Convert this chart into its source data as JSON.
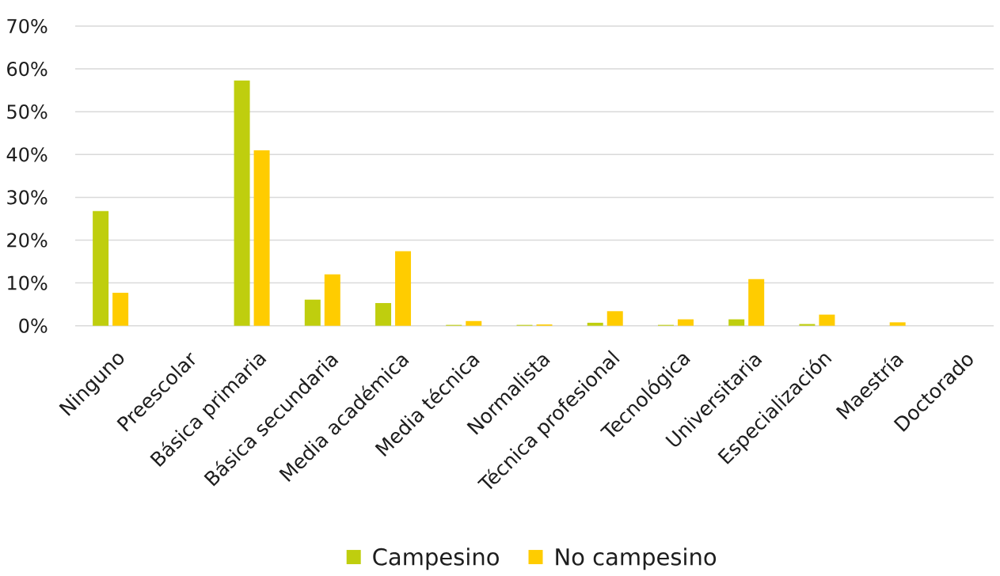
{
  "chart_data": {
    "type": "bar",
    "categories": [
      "Ninguno",
      "Preescolar",
      "Básica primaria",
      "Básica secundaria",
      "Media académica",
      "Media técnica",
      "Normalista",
      "Técnica profesional",
      "Tecnológica",
      "Universitaria",
      "Especialización",
      "Maestría",
      "Doctorado"
    ],
    "series": [
      {
        "name": "Campesino",
        "color": "#bfce0e",
        "values": [
          26.8,
          null,
          57.3,
          6.1,
          5.3,
          0.2,
          0.2,
          0.7,
          0.2,
          1.5,
          0.4,
          null,
          null
        ]
      },
      {
        "name": "No campesino",
        "color": "#ffcc00",
        "values": [
          7.7,
          null,
          41.0,
          12.0,
          17.4,
          1.1,
          0.3,
          3.4,
          1.5,
          10.9,
          2.6,
          0.8,
          null
        ]
      }
    ],
    "ylim": [
      0,
      70
    ],
    "yticks": [
      {
        "value": 0,
        "label": "0%"
      },
      {
        "value": 10,
        "label": "10%"
      },
      {
        "value": 20,
        "label": "20%"
      },
      {
        "value": 30,
        "label": "30%"
      },
      {
        "value": 40,
        "label": "40%"
      },
      {
        "value": 50,
        "label": "50%"
      },
      {
        "value": 60,
        "label": "60%"
      },
      {
        "value": 70,
        "label": "70%"
      }
    ],
    "grid": "y",
    "legend": "bottom"
  }
}
